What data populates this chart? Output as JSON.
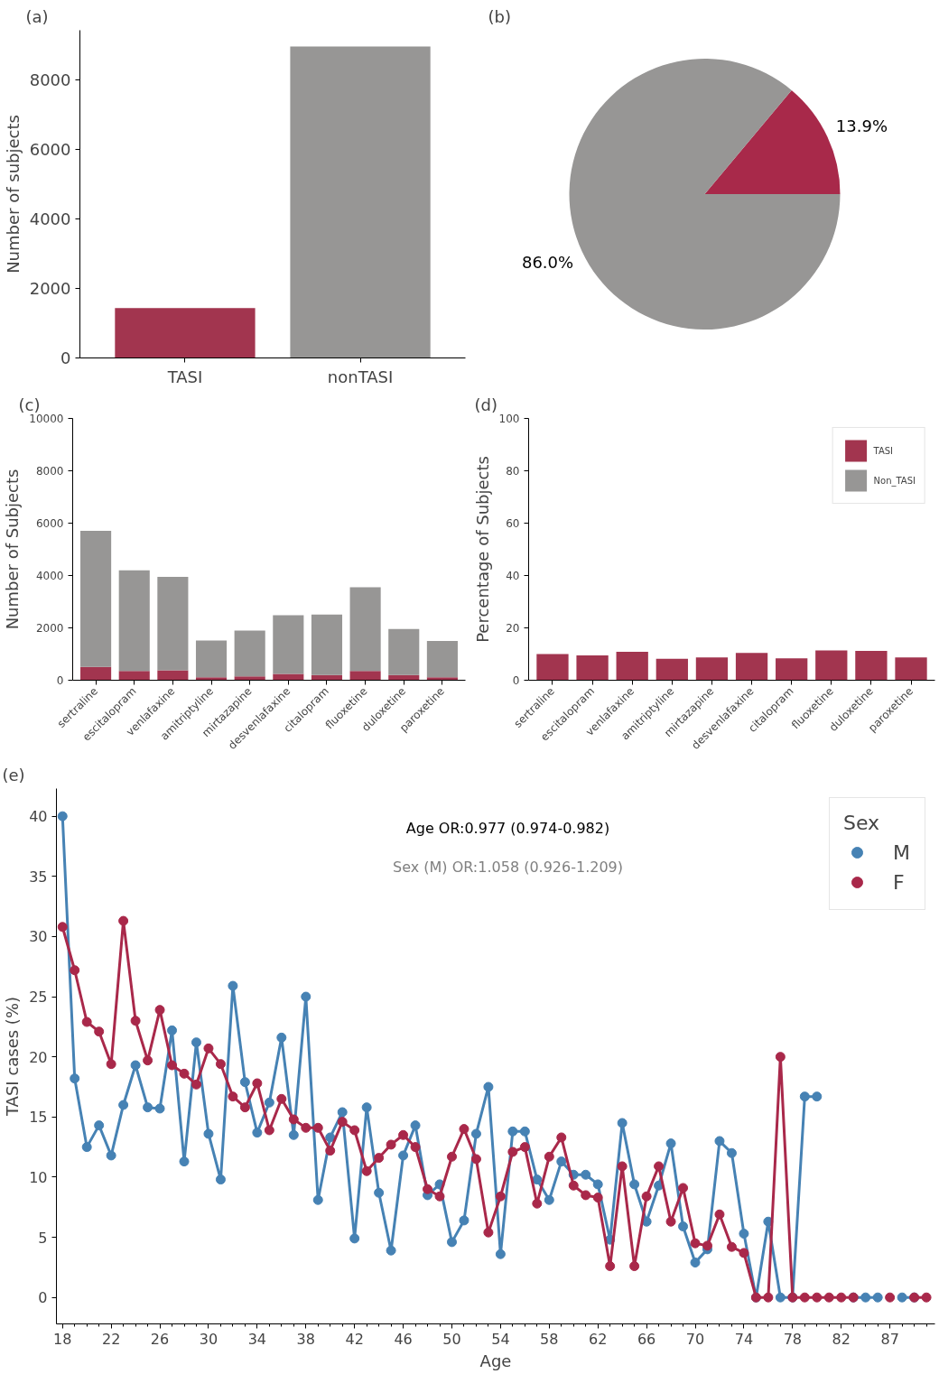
{
  "chart_data": [
    {
      "type": "bar",
      "title": "(a)",
      "ylabel": "Number of subjects",
      "categories": [
        "TASI",
        "nonTASI"
      ],
      "values": [
        1440,
        8970
      ],
      "colors": [
        "#a2354f",
        "#979695"
      ],
      "ylim": [
        0,
        9440
      ],
      "yticks": [
        0,
        2000,
        4000,
        6000,
        8000
      ]
    },
    {
      "type": "pie",
      "title": "(b)",
      "categories": [
        null,
        null
      ],
      "values": [
        13.9,
        86.0
      ],
      "colors": [
        "#a8294a",
        "#979695"
      ],
      "value_labels": [
        "13.9%",
        "86.0%"
      ]
    },
    {
      "type": "bar",
      "title": "(c)",
      "ylabel": "Number of Subjects",
      "stacked": true,
      "categories": [
        "sertraline",
        "escitalopram",
        "venlafaxine",
        "amitriptyline",
        "mirtazapine",
        "desvenlafaxine",
        "citalopram",
        "fluoxetine",
        "duloxetine",
        "paroxetine"
      ],
      "series": [
        {
          "color": "#a2354f",
          "values": [
            510,
            350,
            380,
            110,
            150,
            240,
            200,
            350,
            200,
            110
          ]
        },
        {
          "color": "#979695",
          "values": [
            5200,
            3850,
            3570,
            1410,
            1750,
            2240,
            2310,
            3200,
            1760,
            1390
          ]
        }
      ],
      "ylim": [
        0,
        10000
      ],
      "yticks": [
        0,
        2000,
        4000,
        6000,
        8000,
        10000
      ]
    },
    {
      "type": "bar",
      "title": "(d)",
      "ylabel": "Percentage of Subjects",
      "stacked": true,
      "legend": "top right",
      "categories": [
        "sertraline",
        "escitalopram",
        "venlafaxine",
        "amitriptyline",
        "mirtazapine",
        "desvenlafaxine",
        "citalopram",
        "fluoxetine",
        "duloxetine",
        "paroxetine"
      ],
      "series": [
        {
          "name": "TASI",
          "color": "#a2354f",
          "values": [
            10.0,
            9.5,
            10.9,
            8.2,
            8.7,
            10.4,
            8.4,
            11.4,
            11.2,
            8.7
          ]
        },
        {
          "name": "Non_TASI",
          "color": "#979695",
          "values": [
            null,
            null,
            null,
            null,
            null,
            null,
            null,
            null,
            null,
            null
          ]
        }
      ],
      "ylim": [
        0,
        100
      ],
      "yticks": [
        0,
        20,
        40,
        60,
        80,
        100
      ]
    },
    {
      "type": "line",
      "title": "(e)",
      "xlabel": "Age",
      "ylabel": "TASI cases (%)",
      "legend_title": "Sex",
      "legend": "top right",
      "marker": "circle",
      "line_style": "solid",
      "annotations": [
        "Age OR:0.977 (0.974-0.982)",
        "Sex (M) OR:1.058 (0.926-1.209)"
      ],
      "categories": [
        "18",
        null,
        null,
        null,
        "22",
        null,
        null,
        null,
        "26",
        null,
        null,
        null,
        "30",
        null,
        null,
        null,
        "34",
        null,
        null,
        null,
        "38",
        null,
        null,
        null,
        "42",
        null,
        null,
        null,
        "46",
        null,
        null,
        null,
        "50",
        null,
        null,
        null,
        "54",
        null,
        null,
        null,
        "58",
        null,
        null,
        null,
        "62",
        null,
        null,
        null,
        "66",
        null,
        null,
        null,
        "70",
        null,
        null,
        null,
        "74",
        null,
        null,
        null,
        "78",
        null,
        null,
        null,
        "82",
        null,
        null,
        null,
        "87",
        null,
        null,
        null
      ],
      "series": [
        {
          "name": "M",
          "color": "#4682b4",
          "values": [
            40.0,
            18.2,
            12.5,
            14.3,
            11.8,
            16.0,
            19.3,
            15.8,
            15.7,
            22.2,
            11.3,
            21.2,
            13.6,
            9.8,
            25.9,
            17.9,
            13.7,
            16.2,
            21.6,
            13.5,
            25.0,
            8.1,
            13.3,
            15.4,
            4.9,
            15.8,
            8.7,
            3.9,
            11.8,
            14.3,
            8.5,
            9.4,
            4.6,
            6.4,
            13.6,
            17.5,
            3.6,
            13.8,
            13.8,
            9.8,
            8.1,
            11.3,
            10.2,
            10.2,
            9.4,
            4.8,
            14.5,
            9.4,
            6.3,
            9.3,
            12.8,
            5.9,
            2.9,
            4.0,
            13.0,
            12.0,
            5.3,
            0,
            6.3,
            0,
            0,
            16.7,
            16.7,
            null,
            null,
            0,
            0,
            0,
            null,
            0,
            0,
            null
          ]
        },
        {
          "name": "F",
          "color": "#a9284a",
          "values": [
            30.8,
            27.2,
            22.9,
            22.1,
            19.4,
            31.3,
            23.0,
            19.7,
            23.9,
            19.3,
            18.6,
            17.7,
            20.7,
            19.4,
            16.7,
            15.8,
            17.8,
            13.9,
            16.5,
            14.8,
            14.1,
            14.1,
            12.2,
            14.6,
            13.9,
            10.5,
            11.6,
            12.7,
            13.5,
            12.5,
            9.0,
            8.4,
            11.7,
            14.0,
            11.5,
            5.4,
            8.4,
            12.1,
            12.5,
            7.8,
            11.7,
            13.3,
            9.3,
            8.5,
            8.3,
            2.6,
            10.9,
            2.6,
            8.4,
            10.9,
            6.3,
            9.1,
            4.5,
            4.3,
            6.9,
            4.2,
            3.7,
            0,
            0,
            20.0,
            0,
            0,
            0,
            0,
            0,
            0,
            null,
            null,
            0,
            null,
            0,
            0
          ]
        }
      ],
      "ylim": [
        -2.2,
        42.3
      ],
      "yticks": [
        0,
        5,
        10,
        15,
        20,
        25,
        30,
        35,
        40
      ]
    }
  ]
}
